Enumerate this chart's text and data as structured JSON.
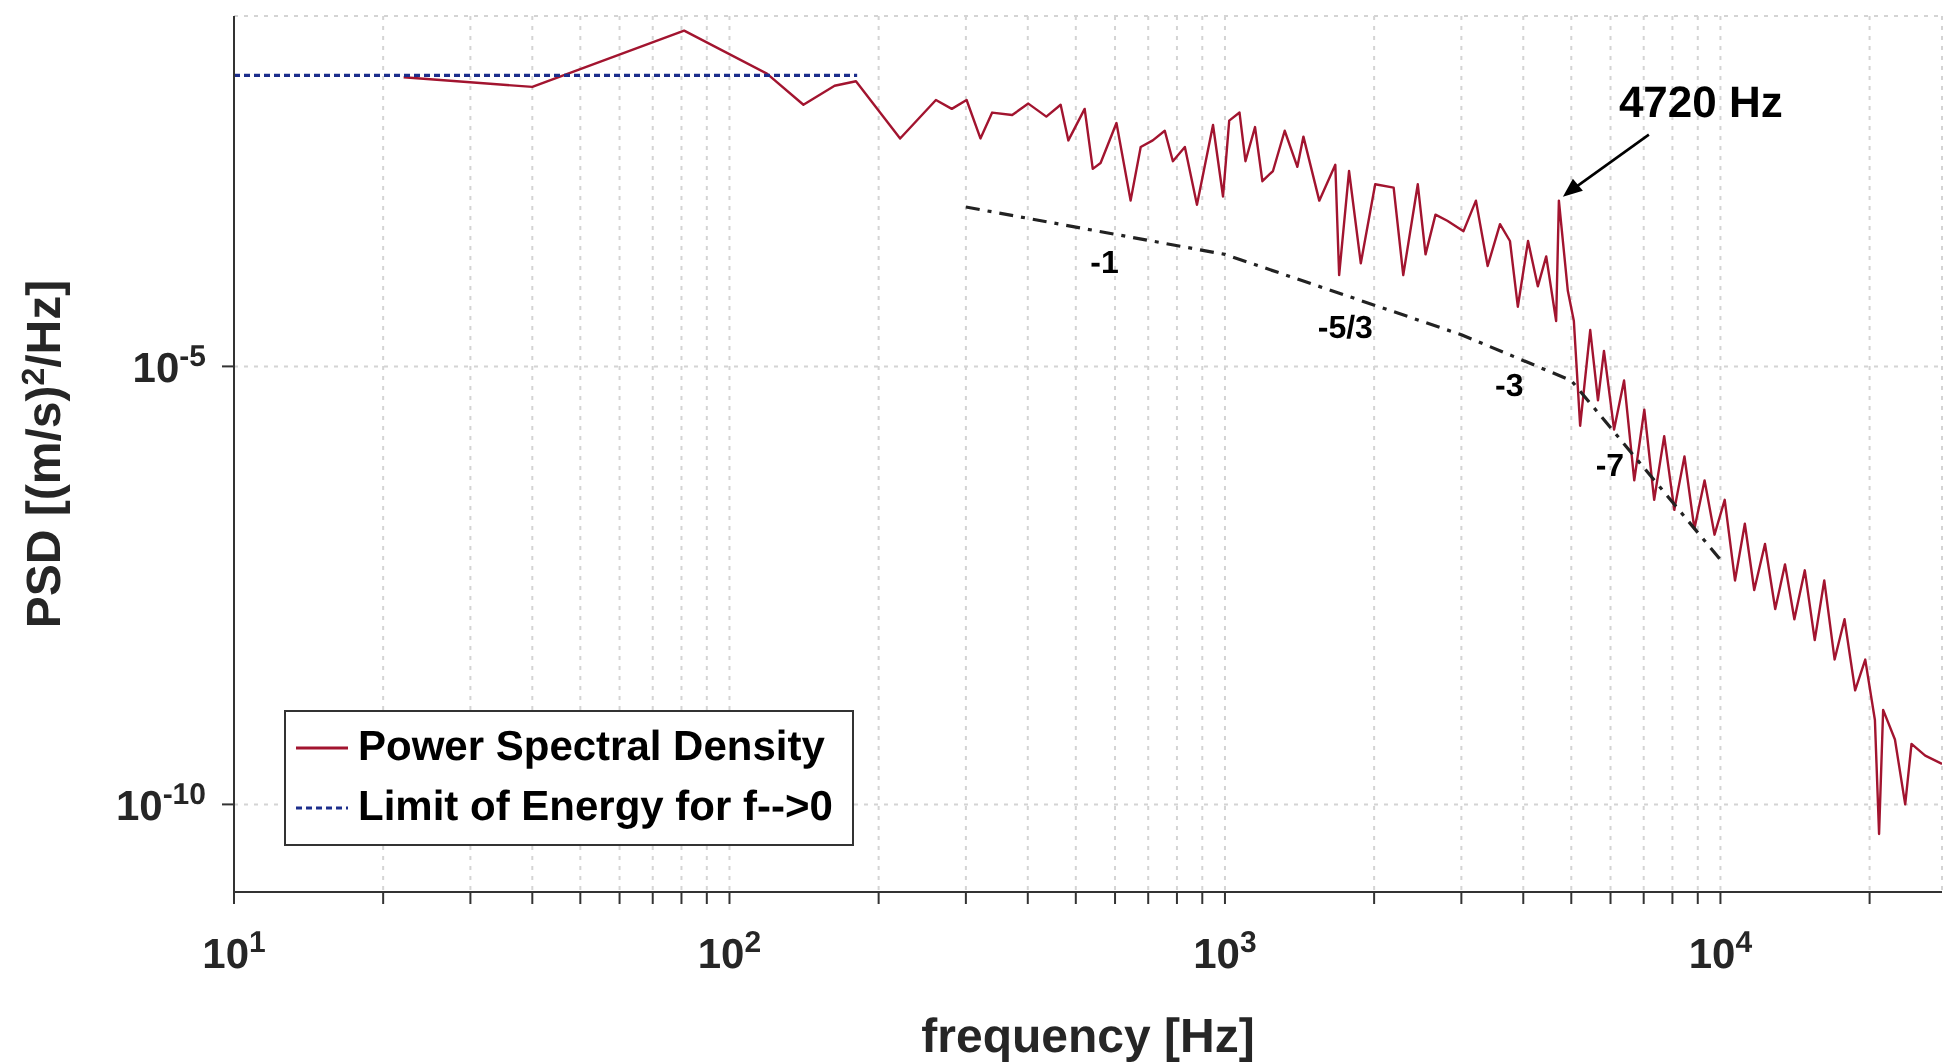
{
  "chart_data": {
    "type": "line",
    "xlabel": "frequency [Hz]",
    "ylabel": "PSD [(m/s)$^{2}$/Hz]",
    "log": "xy",
    "grid": true,
    "legend": "bottom left",
    "marker": "none",
    "xlim": [
      10,
      28000
    ],
    "ylim": [
      1e-11,
      0.1
    ],
    "xticks": [
      {
        "value": 10,
        "label": "10$^{1}$"
      },
      {
        "value": 20,
        "label": null
      },
      {
        "value": 30,
        "label": null
      },
      {
        "value": 40,
        "label": null
      },
      {
        "value": 50,
        "label": null
      },
      {
        "value": 60,
        "label": null
      },
      {
        "value": 70,
        "label": null
      },
      {
        "value": 80,
        "label": null
      },
      {
        "value": 90,
        "label": null
      },
      {
        "value": 100,
        "label": "10$^{2}$"
      },
      {
        "value": 200,
        "label": null
      },
      {
        "value": 300,
        "label": null
      },
      {
        "value": 400,
        "label": null
      },
      {
        "value": 500,
        "label": null
      },
      {
        "value": 600,
        "label": null
      },
      {
        "value": 700,
        "label": null
      },
      {
        "value": 800,
        "label": null
      },
      {
        "value": 900,
        "label": null
      },
      {
        "value": 1000,
        "label": "10$^{3}$"
      },
      {
        "value": 2000,
        "label": null
      },
      {
        "value": 3000,
        "label": null
      },
      {
        "value": 4000,
        "label": null
      },
      {
        "value": 5000,
        "label": null
      },
      {
        "value": 6000,
        "label": null
      },
      {
        "value": 7000,
        "label": null
      },
      {
        "value": 8000,
        "label": null
      },
      {
        "value": 9000,
        "label": null
      },
      {
        "value": 10000,
        "label": "10$^{4}$"
      },
      {
        "value": 20000,
        "label": null
      }
    ],
    "yticks": [
      {
        "value": 1e-10,
        "label": "10$^{-10}$"
      },
      {
        "value": 1e-05,
        "label": "10$^{-5}$"
      }
    ],
    "series": [
      {
        "name": "Power Spectral Density",
        "color": "#a2142f",
        "line_style": "solid",
        "x": [
          22,
          40,
          81,
          119,
          141,
          163,
          180,
          221,
          261,
          281,
          301,
          321,
          339,
          372,
          401,
          436,
          466,
          483,
          521,
          541,
          561,
          604,
          645,
          676,
          715,
          756,
          785,
          830,
          878,
          946,
          991,
          1020,
          1070,
          1100,
          1150,
          1190,
          1250,
          1320,
          1400,
          1440,
          1550,
          1670,
          1700,
          1780,
          1880,
          2010,
          2190,
          2290,
          2450,
          2540,
          2660,
          2810,
          3030,
          3210,
          3390,
          3590,
          3760,
          3900,
          4090,
          4280,
          4450,
          4660,
          4720,
          4920,
          5060,
          5210,
          5460,
          5660,
          5820,
          6100,
          6390,
          6700,
          7020,
          7350,
          7700,
          8070,
          8460,
          8860,
          9290,
          9730,
          10200,
          10700,
          11200,
          11700,
          12300,
          12900,
          13500,
          14100,
          14800,
          15500,
          16200,
          17000,
          17800,
          18700,
          19600,
          20500,
          20900,
          21300,
          22500,
          23600,
          24300,
          25900,
          28000
        ],
        "values": [
          0.02,
          0.0155,
          0.068,
          0.022,
          0.0097,
          0.016,
          0.018,
          0.004,
          0.011,
          0.0087,
          0.011,
          0.004,
          0.0079,
          0.0074,
          0.01,
          0.0071,
          0.0097,
          0.0038,
          0.0087,
          0.0018,
          0.0021,
          0.006,
          0.00078,
          0.0032,
          0.0038,
          0.0049,
          0.0022,
          0.0032,
          0.0007,
          0.0057,
          0.00087,
          0.0064,
          0.0079,
          0.0022,
          0.0054,
          0.0013,
          0.0017,
          0.0049,
          0.0019,
          0.0042,
          0.00078,
          0.002,
          0.00011,
          0.0017,
          0.00015,
          0.0012,
          0.0011,
          0.00011,
          0.0012,
          0.00019,
          0.00054,
          0.00046,
          0.00035,
          0.00078,
          0.00014,
          0.00042,
          0.00027,
          4.8e-05,
          0.00027,
          8.2e-05,
          0.00018,
          3.3e-05,
          0.00078,
          7.3e-05,
          3.3e-05,
          2.1e-06,
          2.6e-05,
          4.1e-06,
          1.5e-05,
          1.9e-06,
          6.9e-06,
          5e-07,
          3.2e-06,
          3e-07,
          1.6e-06,
          2.3e-07,
          9.4e-07,
          1.4e-07,
          5e-07,
          1.2e-07,
          3e-07,
          3.6e-08,
          1.6e-07,
          2.8e-08,
          9.4e-08,
          1.7e-08,
          5.5e-08,
          1.3e-08,
          4.7e-08,
          7.5e-09,
          3.6e-08,
          4.5e-09,
          1.3e-08,
          2e-09,
          4.5e-09,
          9.2e-10,
          4.6e-11,
          1.2e-09,
          5.5e-10,
          1e-10,
          4.9e-10,
          3.6e-10,
          2.9e-10
        ]
      },
      {
        "name": "Limit of Energy for f-->0",
        "color": "#1c2e8c",
        "line_style": "dotted",
        "x": [
          10,
          181
        ],
        "values": [
          0.021,
          0.021
        ]
      },
      {
        "color": "#222222",
        "line_style": "dashed",
        "x": [
          300,
          1000,
          3000,
          5000,
          10000
        ],
        "values": [
          0.00066,
          0.00019,
          2.3e-05,
          6.9e-06,
          6.2e-08
        ]
      }
    ],
    "annotations": [
      {
        "text": "-1",
        "x": 593,
        "y": 0.00033
      },
      {
        "text": "-5/3",
        "x": 1816,
        "y": 6e-05
      },
      {
        "text": "-3",
        "x": 3890,
        "y": 1.3e-05
      },
      {
        "text": "-7",
        "x": 6210,
        "y": 1.6e-06
      },
      {
        "text": "4720 Hz",
        "x": 4720,
        "y": 0.00078
      }
    ]
  }
}
